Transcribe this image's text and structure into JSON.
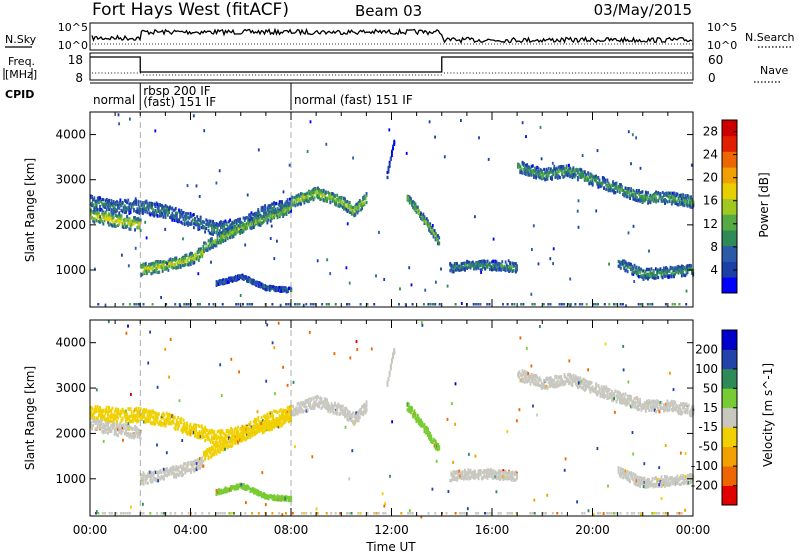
{
  "header": {
    "station": "Fort Hays West (fitACF)",
    "beam": "Beam 03",
    "date": "03/May/2015"
  },
  "noise_panel": {
    "left_label": "N.Sky",
    "right_label": "N.Search",
    "left_ticks": [
      "10^5",
      "10^0"
    ],
    "right_ticks": [
      "10^5",
      "10^0"
    ]
  },
  "freq_panel": {
    "left_label_line1": "Freq.",
    "left_label_line2": "[MHz]",
    "right_label": "Nave",
    "left_ticks": [
      "18",
      "8"
    ],
    "right_ticks": [
      "60",
      "0"
    ]
  },
  "cpid_panel": {
    "label": "CPID",
    "segments": [
      {
        "start_hour": 0.0,
        "end_hour": 2.0,
        "name": "normal",
        "line2": ""
      },
      {
        "start_hour": 2.0,
        "end_hour": 8.0,
        "name": "rbsp 200 IF",
        "line2": "(fast) 151 IF"
      },
      {
        "start_hour": 8.0,
        "end_hour": 24.0,
        "name": "normal (fast) 151 IF",
        "line2": ""
      }
    ]
  },
  "x_axis": {
    "label": "Time UT",
    "ticks": [
      "00:00",
      "04:00",
      "08:00",
      "12:00",
      "16:00",
      "20:00",
      "00:00"
    ]
  },
  "colors": {
    "power_scale": [
      "#0000ff",
      "#1a3fa6",
      "#2a5aa8",
      "#2e8b57",
      "#55aa44",
      "#a0c820",
      "#e8d000",
      "#f0a000",
      "#ee6600",
      "#e02000",
      "#cc0000"
    ],
    "velocity_scale": [
      "#e00000",
      "#ee6600",
      "#f0a000",
      "#f0d000",
      "#c8c8c0",
      "#77cc33",
      "#2e8b57",
      "#2244aa",
      "#0000cc"
    ],
    "ground_scatter": "#c8c8c0"
  },
  "chart_data": [
    {
      "type": "heatmap",
      "title": "Power",
      "ylabel": "Slant Range [km]",
      "xlabel": "",
      "x_unit": "hour UT",
      "xlim": [
        0,
        24
      ],
      "ylim": [
        180,
        4500
      ],
      "y_ticks": [
        1000,
        2000,
        3000,
        4000
      ],
      "colorbar": {
        "label": "Power [dB]",
        "ticks": [
          "4",
          "8",
          "12",
          "16",
          "20",
          "24",
          "28"
        ],
        "range": [
          0,
          30
        ]
      },
      "echo_bands": [
        {
          "t": [
            0.0,
            1.0,
            2.0
          ],
          "range": [
            2200,
            2100,
            2000
          ],
          "width_km": 280,
          "value": 20
        },
        {
          "t": [
            0.0,
            1.0,
            2.0,
            3.0,
            4.0,
            5.0,
            6.0,
            7.0,
            8.0
          ],
          "range": [
            2500,
            2400,
            2400,
            2300,
            2100,
            1900,
            2000,
            2300,
            2450
          ],
          "width_km": 300,
          "value": 10
        },
        {
          "t": [
            2.0,
            3.0,
            4.0,
            4.5
          ],
          "range": [
            1000,
            1100,
            1250,
            1400
          ],
          "width_km": 250,
          "value": 19
        },
        {
          "t": [
            4.5,
            5.5,
            6.5,
            7.5,
            8.0
          ],
          "range": [
            1500,
            1800,
            2050,
            2250,
            2400
          ],
          "width_km": 220,
          "value": 16
        },
        {
          "t": [
            8.0,
            9.0,
            10.0,
            10.5,
            11.0
          ],
          "range": [
            2500,
            2700,
            2500,
            2300,
            2600
          ],
          "width_km": 250,
          "value": 17
        },
        {
          "t": [
            12.6,
            13.3,
            13.9
          ],
          "range": [
            2600,
            2100,
            1600
          ],
          "width_km": 180,
          "value": 16
        },
        {
          "t": [
            14.3,
            15.0,
            16.0,
            17.0
          ],
          "range": [
            1050,
            1100,
            1100,
            1050
          ],
          "width_km": 200,
          "value": 12
        },
        {
          "t": [
            17.0,
            18.0,
            19.0,
            20.0,
            21.0,
            22.0,
            23.0,
            24.0
          ],
          "range": [
            3300,
            3100,
            3200,
            3000,
            2800,
            2600,
            2600,
            2500
          ],
          "width_km": 250,
          "value": 13
        },
        {
          "t": [
            21.0,
            22.0,
            23.0,
            24.0
          ],
          "range": [
            1150,
            900,
            950,
            1000
          ],
          "width_km": 220,
          "value": 12
        },
        {
          "t": [
            5.0,
            6.0,
            7.0,
            8.0
          ],
          "range": [
            700,
            850,
            600,
            550
          ],
          "width_km": 90,
          "value": 8
        },
        {
          "t": [
            11.8,
            12.1
          ],
          "range": [
            3100,
            3900
          ],
          "width_km": 120,
          "value": 5
        }
      ]
    },
    {
      "type": "heatmap",
      "title": "Velocity",
      "ylabel": "Slant Range [km]",
      "xlabel": "Time UT",
      "x_unit": "hour UT",
      "xlim": [
        0,
        24
      ],
      "ylim": [
        180,
        4500
      ],
      "y_ticks": [
        1000,
        2000,
        3000,
        4000
      ],
      "colorbar": {
        "label": "Velocity [m s^-1]",
        "ticks": [
          "200",
          "100",
          "50",
          "15",
          "-15",
          "-50",
          "-100",
          "-200"
        ],
        "range": [
          -250,
          250
        ]
      },
      "echo_bands": [
        {
          "t": [
            0.0,
            1.0,
            2.0
          ],
          "range": [
            2200,
            2100,
            2000
          ],
          "width_km": 280,
          "value": 0
        },
        {
          "t": [
            0.0,
            1.0,
            2.0,
            3.0,
            4.0,
            5.0,
            6.0,
            7.0,
            8.0
          ],
          "range": [
            2500,
            2400,
            2400,
            2300,
            2100,
            1900,
            2000,
            2300,
            2450
          ],
          "width_km": 300,
          "value": -30
        },
        {
          "t": [
            2.0,
            3.0,
            4.0,
            4.5
          ],
          "range": [
            1000,
            1100,
            1250,
            1400
          ],
          "width_km": 250,
          "value": 0
        },
        {
          "t": [
            4.5,
            5.5,
            6.5,
            7.5,
            8.0
          ],
          "range": [
            1500,
            1800,
            2050,
            2250,
            2400
          ],
          "width_km": 220,
          "value": -40
        },
        {
          "t": [
            8.0,
            9.0,
            10.0,
            10.5,
            11.0
          ],
          "range": [
            2500,
            2700,
            2500,
            2300,
            2600
          ],
          "width_km": 250,
          "value": 0
        },
        {
          "t": [
            12.6,
            13.3,
            13.9
          ],
          "range": [
            2600,
            2100,
            1600
          ],
          "width_km": 180,
          "value": 40
        },
        {
          "t": [
            14.3,
            15.0,
            16.0,
            17.0
          ],
          "range": [
            1050,
            1100,
            1100,
            1050
          ],
          "width_km": 200,
          "value": 0
        },
        {
          "t": [
            17.0,
            18.0,
            19.0,
            20.0,
            21.0,
            22.0,
            23.0,
            24.0
          ],
          "range": [
            3300,
            3100,
            3200,
            3000,
            2800,
            2600,
            2600,
            2500
          ],
          "width_km": 250,
          "value": 0
        },
        {
          "t": [
            21.0,
            22.0,
            23.0,
            24.0
          ],
          "range": [
            1150,
            900,
            950,
            1000
          ],
          "width_km": 220,
          "value": 0
        },
        {
          "t": [
            5.0,
            6.0,
            7.0,
            8.0
          ],
          "range": [
            700,
            850,
            600,
            550
          ],
          "width_km": 90,
          "value": 30
        },
        {
          "t": [
            11.8,
            12.1
          ],
          "range": [
            3100,
            3900
          ],
          "width_km": 120,
          "value": 0
        }
      ]
    }
  ]
}
